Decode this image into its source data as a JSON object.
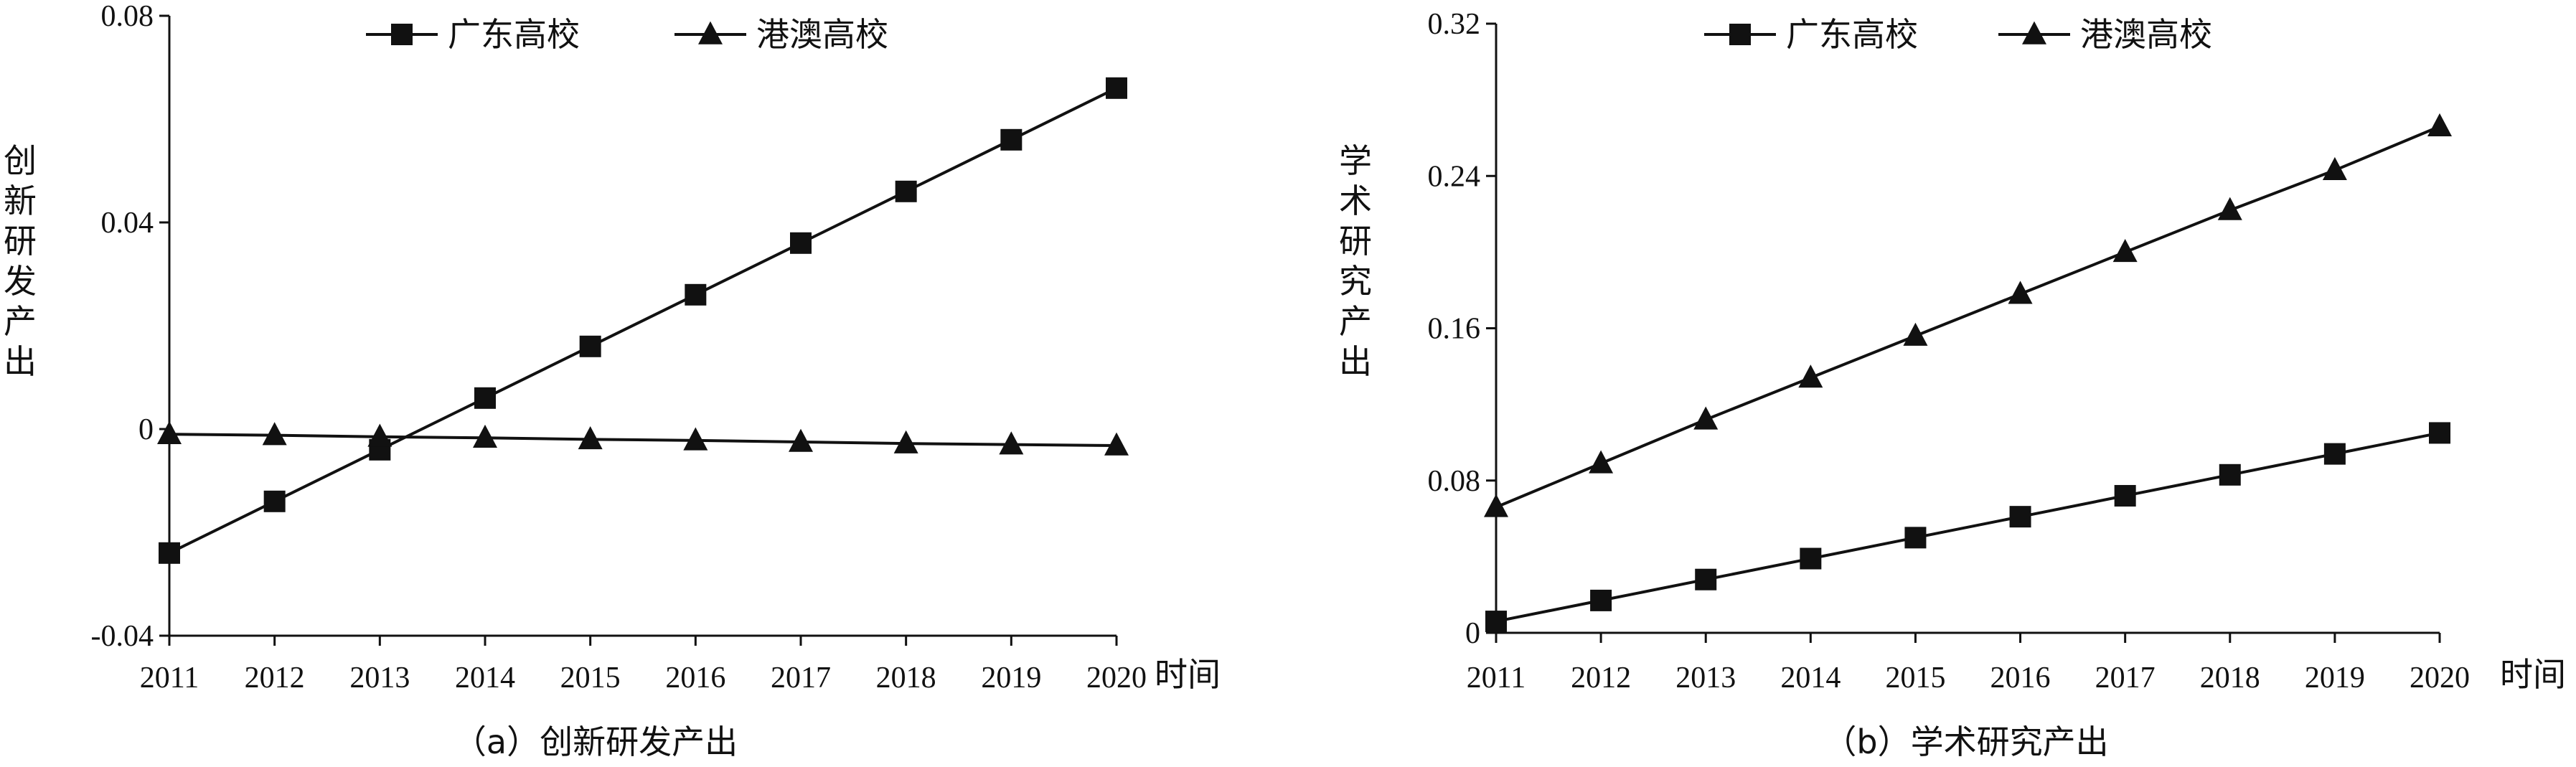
{
  "chart_data": [
    {
      "type": "line",
      "caption": "（a）创新研发产出",
      "ylabel": "创新研发产出",
      "xlabel": "时间",
      "categories": [
        "2011",
        "2012",
        "2013",
        "2014",
        "2015",
        "2016",
        "2017",
        "2018",
        "2019",
        "2020"
      ],
      "ylim": [
        -0.04,
        0.08
      ],
      "yticks": [
        "-0.04",
        "0",
        "0.04",
        "0.08"
      ],
      "ytick_values": [
        -0.04,
        0,
        0.04,
        0.08
      ],
      "legend_position": "top-center",
      "grid": false,
      "series": [
        {
          "name": "广东高校",
          "marker": "square",
          "values": [
            -0.024,
            -0.014,
            -0.004,
            0.006,
            0.016,
            0.026,
            0.036,
            0.046,
            0.056,
            0.066
          ]
        },
        {
          "name": "港澳高校",
          "marker": "triangle",
          "values": [
            -0.001,
            -0.0012,
            -0.0015,
            -0.0017,
            -0.002,
            -0.0022,
            -0.0025,
            -0.0028,
            -0.003,
            -0.0032
          ]
        }
      ]
    },
    {
      "type": "line",
      "caption": "（b）学术研究产出",
      "ylabel": "学术研究产出",
      "xlabel": "时间",
      "categories": [
        "2011",
        "2012",
        "2013",
        "2014",
        "2015",
        "2016",
        "2017",
        "2018",
        "2019",
        "2020"
      ],
      "ylim": [
        0,
        0.32
      ],
      "yticks": [
        "0",
        "0.08",
        "0.16",
        "0.24",
        "0.32"
      ],
      "ytick_values": [
        0,
        0.08,
        0.16,
        0.24,
        0.32
      ],
      "legend_position": "top-center",
      "grid": false,
      "series": [
        {
          "name": "广东高校",
          "marker": "square",
          "values": [
            0.006,
            0.017,
            0.028,
            0.039,
            0.05,
            0.061,
            0.072,
            0.083,
            0.094,
            0.105
          ]
        },
        {
          "name": "港澳高校",
          "marker": "triangle",
          "values": [
            0.066,
            0.089,
            0.112,
            0.134,
            0.156,
            0.178,
            0.2,
            0.222,
            0.243,
            0.266
          ]
        }
      ]
    }
  ]
}
